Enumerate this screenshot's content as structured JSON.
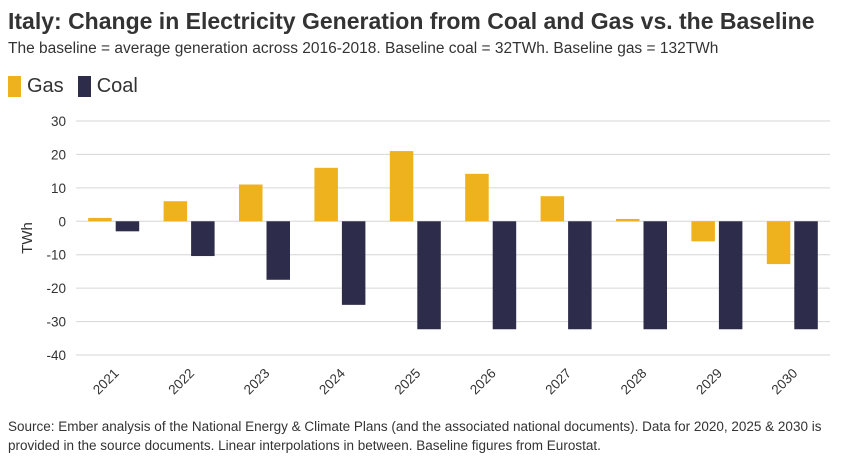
{
  "title": "Italy: Change in Electricity Generation from Coal and Gas vs. the Baseline",
  "subtitle": "The baseline = average generation across 2016-2018. Baseline coal = 32TWh. Baseline gas = 132TWh",
  "source": "Source: Ember analysis of the National Energy & Climate Plans (and the associated national documents). Data for 2020, 2025 & 2030 is provided in the source documents. Linear interpolations in between. Baseline figures from Eurostat.",
  "colors": {
    "gas": "#EDB21E",
    "coal": "#2D2D4B",
    "grid": "#d6d6d6",
    "text": "#333333"
  },
  "chart_data": {
    "type": "bar",
    "categories": [
      "2021",
      "2022",
      "2023",
      "2024",
      "2025",
      "2026",
      "2027",
      "2028",
      "2029",
      "2030"
    ],
    "series": [
      {
        "name": "Gas",
        "color": "#EDB21E",
        "values": [
          1,
          6,
          11,
          16,
          21,
          14.2,
          7.5,
          0.7,
          -6,
          -12.8
        ]
      },
      {
        "name": "Coal",
        "color": "#2D2D4B",
        "values": [
          -3,
          -10.4,
          -17.5,
          -25,
          -32.3,
          -32.3,
          -32.3,
          -32.3,
          -32.3,
          -32.3
        ]
      }
    ],
    "ylabel": "TWh",
    "xlabel": "",
    "ylim": [
      -40,
      30
    ],
    "yticks": [
      30,
      20,
      10,
      0,
      -10,
      -20,
      -30,
      -40
    ],
    "grid": true,
    "legend_position": "top-left"
  }
}
